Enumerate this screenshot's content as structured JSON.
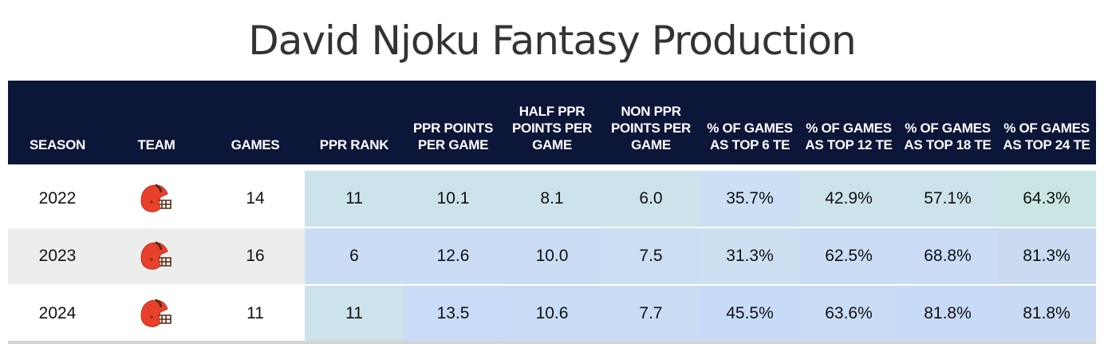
{
  "title": "David Njoku Fantasy Production",
  "headers": [
    "SEASON",
    "TEAM",
    "GAMES",
    "PPR RANK",
    "PPR POINTS PER GAME",
    "HALF PPR POINTS PER GAME",
    "NON PPR POINTS PER GAME",
    "% OF GAMES AS TOP 6 TE",
    "% OF GAMES AS TOP 12 TE",
    "% OF GAMES AS TOP 18 TE",
    "% OF GAMES AS TOP 24 TE"
  ],
  "team_icon": "cleveland-browns-helmet-icon",
  "rows": [
    {
      "season": "2022",
      "team": "CLE",
      "games": "14",
      "ppr_rank": "11",
      "ppr_ppg": "10.1",
      "half_ppg": "8.1",
      "non_ppg": "6.0",
      "top6": "35.7%",
      "top12": "42.9%",
      "top18": "57.1%",
      "top24": "64.3%",
      "colors": [
        "#cde3eb",
        "#cde3eb",
        "#cde3eb",
        "#cde3eb",
        "#ccdff5",
        "#cde3eb",
        "#cde3eb",
        "#c9e6e4"
      ]
    },
    {
      "season": "2023",
      "team": "CLE",
      "games": "16",
      "ppr_rank": "6",
      "ppr_ppg": "12.6",
      "half_ppg": "10.0",
      "non_ppg": "7.5",
      "top6": "31.3%",
      "top12": "62.5%",
      "top18": "68.8%",
      "top24": "81.3%",
      "colors": [
        "#cbddf4",
        "#cbddf4",
        "#cbddf4",
        "#cbdef3",
        "#cde0f2",
        "#cbddf4",
        "#cadcf6",
        "#cadbf1"
      ]
    },
    {
      "season": "2024",
      "team": "CLE",
      "games": "11",
      "ppr_rank": "11",
      "ppr_ppg": "13.5",
      "half_ppg": "10.6",
      "non_ppg": "7.7",
      "top6": "45.5%",
      "top12": "63.6%",
      "top18": "81.8%",
      "top24": "81.8%",
      "colors": [
        "#cde3eb",
        "#c8dbf7",
        "#c9dcf5",
        "#cadcf3",
        "#c7dbf8",
        "#c9dcf5",
        "#c7daf8",
        "#c9dbf4"
      ]
    }
  ]
}
